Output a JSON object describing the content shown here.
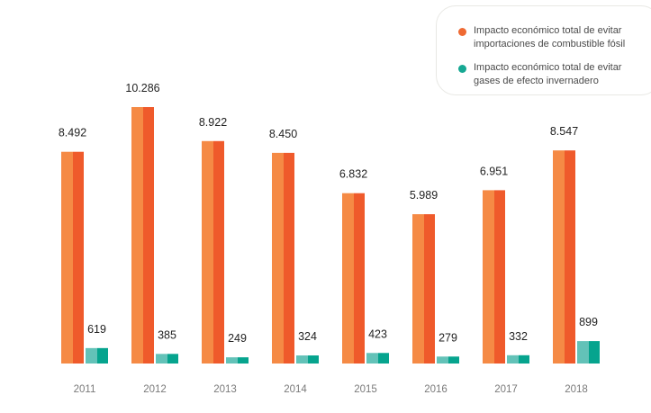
{
  "chart_data": {
    "type": "bar",
    "title": "",
    "xlabel": "",
    "ylabel": "",
    "ylim": [
      0,
      10286
    ],
    "grid": false,
    "legend_position": "top-right",
    "categories": [
      "2011",
      "2012",
      "2013",
      "2014",
      "2015",
      "2016",
      "2017",
      "2018"
    ],
    "series": [
      {
        "name": "Impacto económico total de evitar importaciones de combustible fósil",
        "color_light": "#f58a45",
        "color_dark": "#ef5a2b",
        "values": [
          8492,
          10286,
          8922,
          8450,
          6832,
          5989,
          6951,
          8547
        ],
        "labels": [
          "8.492",
          "10.286",
          "8.922",
          "8.450",
          "6.832",
          "5.989",
          "6.951",
          "8.547"
        ]
      },
      {
        "name": "Impacto económico total de evitar gases de efecto invernadero",
        "color_light": "#63c2b8",
        "color_dark": "#06a48e",
        "values": [
          619,
          385,
          249,
          324,
          423,
          279,
          332,
          899
        ],
        "labels": [
          "619",
          "385",
          "249",
          "324",
          "423",
          "279",
          "332",
          "899"
        ]
      }
    ]
  },
  "legend": {
    "items": [
      {
        "label": "Impacto económico total de evitar importaciones de combustible fósil",
        "color": "#ef6a33"
      },
      {
        "label": "Impacto económico total de evitar gases de efecto invernadero",
        "color": "#16a893"
      }
    ]
  }
}
